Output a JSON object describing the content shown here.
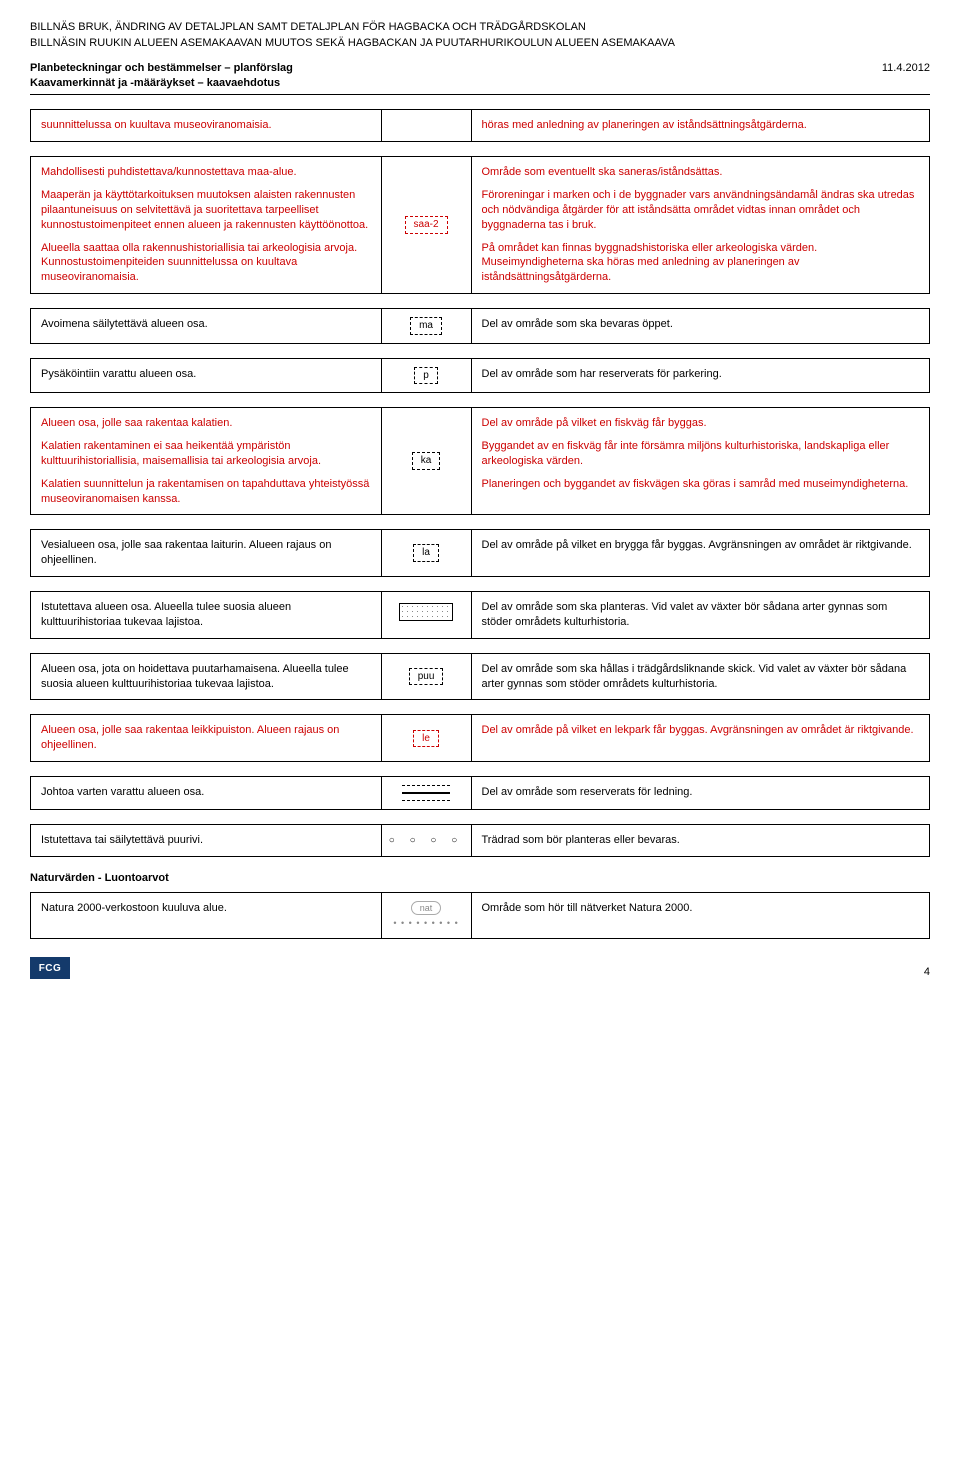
{
  "header": {
    "line1": "BILLNÄS BRUK, ÄNDRING AV DETALJPLAN SAMT DETALJPLAN FÖR HAGBACKA OCH TRÄDGÅRDSKOLAN",
    "line2": "BILLNÄSIN RUUKIN ALUEEN ASEMAKAAVAN MUUTOS SEKÄ HAGBACKAN JA PUUTARHURIKOULUN ALUEEN ASEMAKAAVA",
    "plan_sv": "Planbeteckningar och bestämmelser – planförslag",
    "plan_fi": "Kaavamerkinnät ja -määräykset – kaavaehdotus",
    "date": "11.4.2012"
  },
  "rows": [
    {
      "left_red": true,
      "right_red": true,
      "left_paras": [
        "suunnittelussa on kuultava museoviranomaisia."
      ],
      "mid_type": "none",
      "right_paras": [
        "höras med anledning av planeringen av iståndsättningsåtgärderna."
      ]
    },
    {
      "left_red": true,
      "right_red": true,
      "left_paras": [
        "Mahdollisesti puhdistettava/kunnostettava maa-alue.",
        "Maaperän ja käyttötarkoituksen muutoksen alaisten rakennusten pilaantuneisuus on selvitettävä ja suoritettava tarpeelliset kunnostustoimenpiteet ennen alueen ja rakennusten käyttöönottoa.",
        "Alueella saattaa olla rakennushistoriallisia tai arkeologisia arvoja. Kunnostustoimenpiteiden suunnittelussa on kuultava museoviranomaisia."
      ],
      "mid_type": "symbox-red",
      "mid_label": "saa-2",
      "right_paras": [
        "Område som eventuellt ska saneras/iståndsättas.",
        "Föroreningar i marken och i de byggnader vars användningsändamål ändras ska utredas och nödvändiga åtgärder för att iståndsätta området vidtas innan området och byggnaderna tas i bruk.",
        "På området kan finnas byggnadshistoriska eller arkeologiska värden. Museimyndigheterna ska höras med anledning av planeringen av iståndsättningsåtgärderna."
      ]
    },
    {
      "left_paras": [
        "Avoimena säilytettävä alueen osa."
      ],
      "mid_type": "symbox",
      "mid_label": "ma",
      "right_paras": [
        "Del av område som ska bevaras öppet."
      ]
    },
    {
      "left_paras": [
        "Pysäköintiin varattu alueen osa."
      ],
      "mid_type": "symbox",
      "mid_label": "p",
      "right_paras": [
        "Del av område som har reserverats för parkering."
      ]
    },
    {
      "left_red": true,
      "right_red": true,
      "left_paras": [
        "Alueen osa, jolle saa rakentaa kalatien.",
        "Kalatien rakentaminen ei saa heikentää ympäristön kulttuurihistoriallisia, maisemallisia tai arkeologisia arvoja.",
        "Kalatien suunnittelun ja rakentamisen on tapahduttava yhteistyössä museoviranomaisen kanssa."
      ],
      "mid_type": "symbox",
      "mid_label": "ka",
      "right_paras": [
        "Del av område på vilket en fiskväg får byggas.",
        "Byggandet av en fiskväg får inte försämra miljöns kulturhistoriska, landskapliga eller arkeologiska värden.",
        "Planeringen och byggandet av fiskvägen ska göras i samråd med museimyndigheterna."
      ]
    },
    {
      "left_paras": [
        "Vesialueen osa, jolle saa rakentaa laiturin. Alueen rajaus on ohjeellinen."
      ],
      "mid_type": "symbox",
      "mid_label": "la",
      "right_paras": [
        "Del av område på vilket en brygga får byggas. Avgränsningen av området är riktgivande."
      ]
    },
    {
      "left_paras": [
        "Istutettava alueen osa. Alueella tulee suosia alueen kulttuurihistoriaa tukevaa lajistoa."
      ],
      "mid_type": "dotbox",
      "right_paras": [
        "Del av område som ska planteras. Vid valet av växter bör sådana arter gynnas som stöder områdets kulturhistoria."
      ]
    },
    {
      "left_paras": [
        "Alueen osa, jota on hoidettava puutarhamaisena. Alueella tulee suosia alueen kulttuurihistoriaa tukevaa lajistoa."
      ],
      "mid_type": "symbox",
      "mid_label": "puu",
      "right_paras": [
        "Del av område som ska hållas i trädgårdsliknande skick. Vid valet av växter bör sådana arter gynnas som stöder områdets kulturhistoria."
      ]
    },
    {
      "left_red": true,
      "right_red": true,
      "left_paras": [
        "Alueen osa, jolle saa rakentaa leikkipuiston. Alueen rajaus on ohjeellinen."
      ],
      "mid_type": "symbox-red",
      "mid_label": "le",
      "right_paras": [
        "Del av område på vilket en lekpark får byggas. Avgränsningen av området är riktgivande."
      ]
    },
    {
      "left_paras": [
        "Johtoa varten varattu alueen osa."
      ],
      "mid_type": "lines",
      "right_paras": [
        "Del av område som reserverats för ledning."
      ]
    },
    {
      "left_paras": [
        "Istutettava tai säilytettävä puurivi."
      ],
      "mid_type": "circles",
      "right_paras": [
        "Trädrad som bör planteras eller bevaras."
      ]
    }
  ],
  "section2_title": "Naturvärden - Luontoarvot",
  "rows2": [
    {
      "left_paras": [
        "Natura 2000-verkostoon kuuluva alue."
      ],
      "mid_type": "nat",
      "mid_label": "nat",
      "right_paras": [
        "Område som hör till nätverket Natura 2000."
      ]
    }
  ],
  "footer": {
    "logo": "FCG",
    "page": "4"
  }
}
